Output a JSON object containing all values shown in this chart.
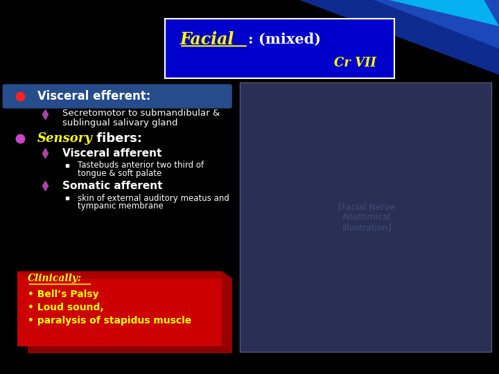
{
  "background_color": "#000000",
  "title_box_color": "#0000cc",
  "title_text": "Facial",
  "title_mixed": ": (mixed)",
  "cr_vii": "Cr VII",
  "yellow_color": "#ffff00",
  "white_color": "#ffffff",
  "sensory_italic_color": "#ffff00",
  "clinically_color": "#ffff00",
  "lines": {
    "visceral_efferent_label": "Visceral efferent:",
    "secretomotor_line1": "Secretomotor to submandibular &",
    "secretomotor_line2": "sublingual salivary gland",
    "sensory_fibers_italic": "Sensory",
    "sensory_fibers_rest": " fibers:",
    "visceral_afferent": "Visceral afferent",
    "tastebuds_line1": "Tastebuds anterior two third of",
    "tastebuds_line2": "tongue & soft palate",
    "somatic_afferent": "Somatic afferent",
    "skin_line1": "skin of external auditory meatus and",
    "skin_line2": "tympanic membrane",
    "clinically_label": "Clinically:",
    "bell_palsy": "• Bell’s Palsy",
    "loud_sound": "• Loud sound,",
    "paralysis": "• paralysis of stapidus muscle"
  }
}
